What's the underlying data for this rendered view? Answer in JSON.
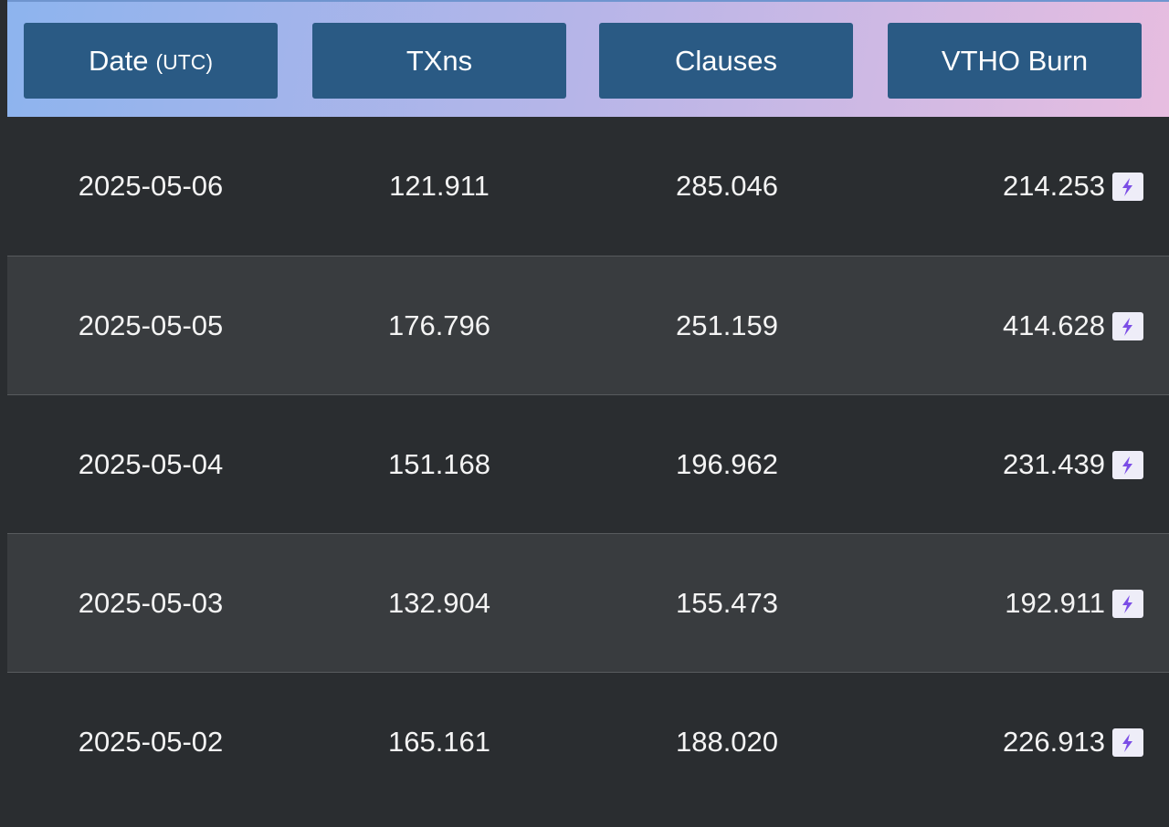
{
  "header": {
    "columns": [
      {
        "label": "Date",
        "sub": "(UTC)"
      },
      {
        "label": "TXns"
      },
      {
        "label": "Clauses"
      },
      {
        "label": "VTHO Burn"
      }
    ]
  },
  "table": {
    "rows": [
      [
        "2025-05-06",
        "121.911",
        "285.046",
        "214.253"
      ],
      [
        "2025-05-05",
        "176.796",
        "251.159",
        "414.628"
      ],
      [
        "2025-05-04",
        "151.168",
        "196.962",
        "231.439"
      ],
      [
        "2025-05-03",
        "132.904",
        "155.473",
        "192.911"
      ],
      [
        "2025-05-02",
        "165.161",
        "188.020",
        "226.913"
      ]
    ]
  }
}
